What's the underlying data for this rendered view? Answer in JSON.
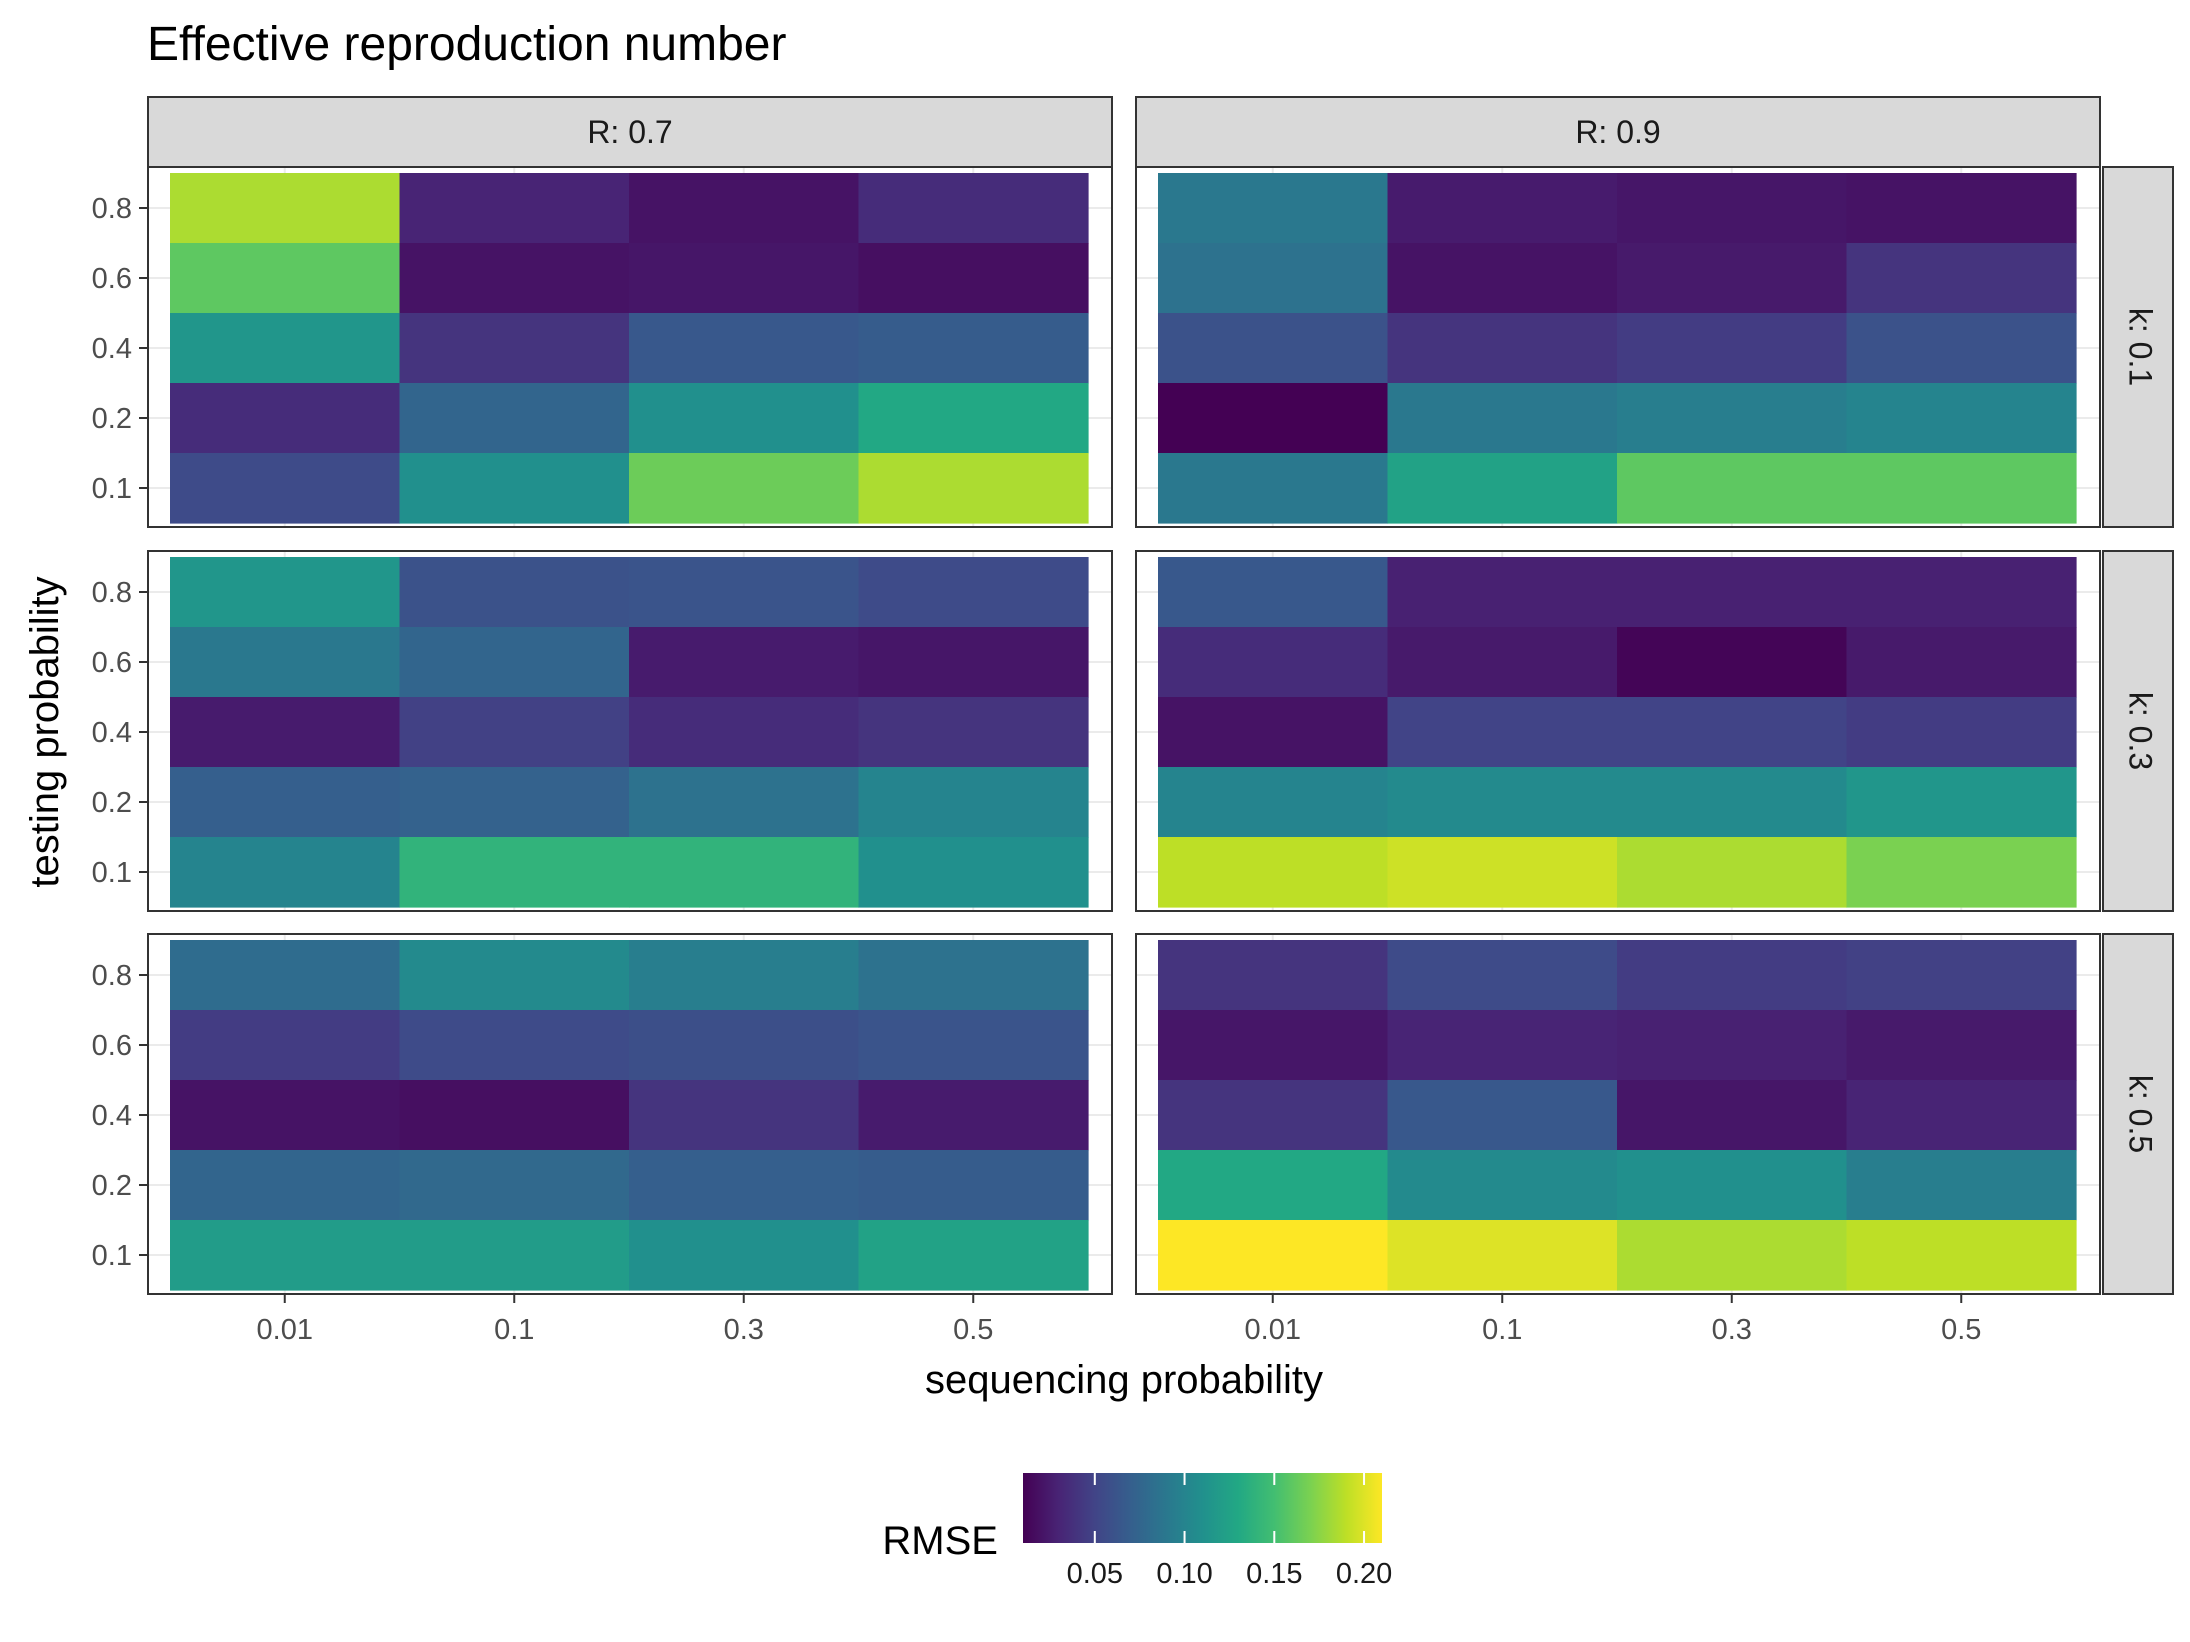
{
  "chart_data": {
    "type": "heatmap",
    "title": "Effective reproduction number",
    "xlabel": "sequencing probability",
    "ylabel": "testing probability",
    "x_categories": [
      "0.01",
      "0.1",
      "0.3",
      "0.5"
    ],
    "y_categories": [
      "0.1",
      "0.2",
      "0.4",
      "0.6",
      "0.8"
    ],
    "col_facets": [
      "R: 0.7",
      "R: 0.9"
    ],
    "row_facets": [
      "k: 0.1",
      "k: 0.3",
      "k: 0.5"
    ],
    "grid": true,
    "legend": {
      "title": "RMSE",
      "placement": "bottom",
      "scale": "viridis",
      "range": [
        0.01,
        0.21
      ],
      "ticks": [
        0.05,
        0.1,
        0.15,
        0.2
      ],
      "tick_labels": [
        "0.05",
        "0.10",
        "0.15",
        "0.20"
      ]
    },
    "panels": [
      {
        "col_facet": "R: 0.7",
        "row_facet": "k: 0.1",
        "values_by_y_top_to_bottom": [
          [
            0.185,
            0.03,
            0.02,
            0.035
          ],
          [
            0.16,
            0.02,
            0.022,
            0.018
          ],
          [
            0.115,
            0.04,
            0.065,
            0.068
          ],
          [
            0.035,
            0.075,
            0.11,
            0.13
          ],
          [
            0.055,
            0.11,
            0.165,
            0.185
          ]
        ]
      },
      {
        "col_facet": "R: 0.9",
        "row_facet": "k: 0.1",
        "values_by_y_top_to_bottom": [
          [
            0.09,
            0.025,
            0.022,
            0.02
          ],
          [
            0.085,
            0.02,
            0.024,
            0.04
          ],
          [
            0.06,
            0.04,
            0.045,
            0.06
          ],
          [
            0.01,
            0.09,
            0.095,
            0.1
          ],
          [
            0.09,
            0.125,
            0.16,
            0.16
          ]
        ]
      },
      {
        "col_facet": "R: 0.7",
        "row_facet": "k: 0.3",
        "values_by_y_top_to_bottom": [
          [
            0.115,
            0.06,
            0.062,
            0.055
          ],
          [
            0.09,
            0.075,
            0.025,
            0.022
          ],
          [
            0.025,
            0.048,
            0.035,
            0.04
          ],
          [
            0.07,
            0.072,
            0.085,
            0.1
          ],
          [
            0.1,
            0.14,
            0.14,
            0.11
          ]
        ]
      },
      {
        "col_facet": "R: 0.9",
        "row_facet": "k: 0.3",
        "values_by_y_top_to_bottom": [
          [
            0.065,
            0.028,
            0.028,
            0.028
          ],
          [
            0.035,
            0.024,
            0.012,
            0.024
          ],
          [
            0.02,
            0.05,
            0.05,
            0.045
          ],
          [
            0.1,
            0.105,
            0.105,
            0.115
          ],
          [
            0.19,
            0.195,
            0.185,
            0.17
          ]
        ]
      },
      {
        "col_facet": "R: 0.7",
        "row_facet": "k: 0.5",
        "values_by_y_top_to_bottom": [
          [
            0.08,
            0.105,
            0.095,
            0.085
          ],
          [
            0.045,
            0.055,
            0.058,
            0.062
          ],
          [
            0.02,
            0.018,
            0.04,
            0.025
          ],
          [
            0.075,
            0.078,
            0.07,
            0.068
          ],
          [
            0.12,
            0.12,
            0.11,
            0.125
          ]
        ]
      },
      {
        "col_facet": "R: 0.9",
        "row_facet": "k: 0.5",
        "values_by_y_top_to_bottom": [
          [
            0.04,
            0.055,
            0.045,
            0.048
          ],
          [
            0.022,
            0.03,
            0.028,
            0.024
          ],
          [
            0.04,
            0.065,
            0.022,
            0.03
          ],
          [
            0.13,
            0.105,
            0.11,
            0.095
          ],
          [
            0.215,
            0.2,
            0.185,
            0.19
          ]
        ]
      }
    ]
  }
}
